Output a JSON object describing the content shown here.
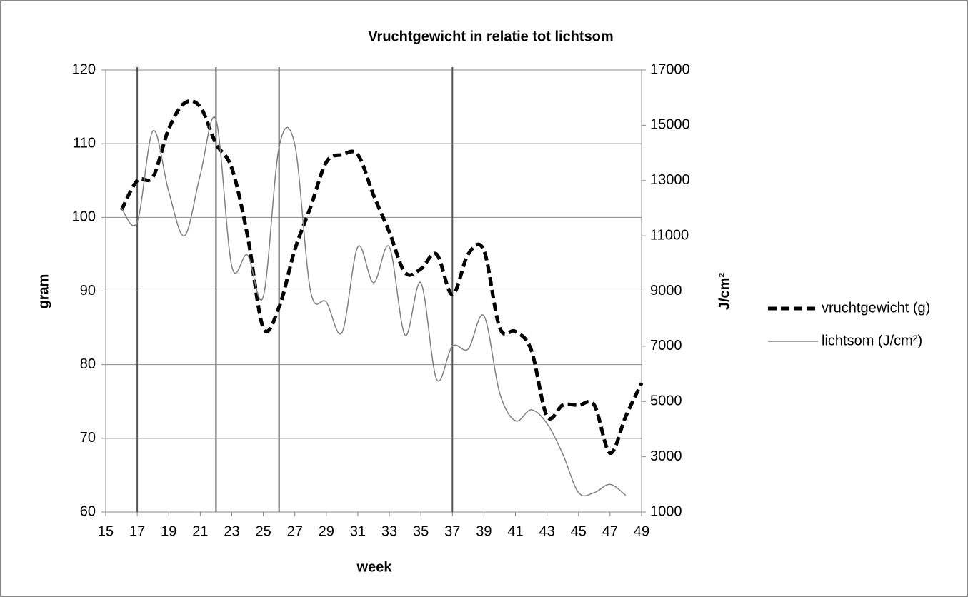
{
  "chart_data": {
    "type": "line",
    "title": "Vruchtgewicht in relatie tot lichtsom",
    "xlabel": "week",
    "ylabel": "gram",
    "y2label": "J/cm²",
    "xlim": [
      15,
      49
    ],
    "xticks": [
      15,
      17,
      19,
      21,
      23,
      25,
      27,
      29,
      31,
      33,
      35,
      37,
      39,
      41,
      43,
      45,
      47,
      49
    ],
    "ylim": [
      60,
      120
    ],
    "yticks": [
      60,
      70,
      80,
      90,
      100,
      110,
      120
    ],
    "y2lim": [
      1000,
      17000
    ],
    "y2ticks": [
      1000,
      3000,
      5000,
      7000,
      9000,
      11000,
      13000,
      15000,
      17000
    ],
    "grid": true,
    "legend": "right",
    "vlines": [
      17,
      22,
      26,
      37
    ],
    "series": [
      {
        "name": "vruchtgewicht (g)",
        "color": "#000000",
        "style": "dashed",
        "x": [
          16,
          17,
          18,
          19,
          20,
          21,
          22,
          23,
          24,
          25,
          26,
          27,
          28,
          29,
          30,
          31,
          32,
          33,
          34,
          35,
          36,
          37,
          38,
          39,
          40,
          41,
          42,
          43,
          44,
          45,
          46,
          47,
          48,
          49
        ],
        "values": [
          101,
          105,
          105.5,
          112,
          115.5,
          115,
          110,
          106.7,
          97.5,
          85,
          87.8,
          95.6,
          101.4,
          107.5,
          108.5,
          108.5,
          103,
          98,
          92.5,
          93,
          95,
          89.5,
          95,
          95.5,
          85,
          84.5,
          82,
          73,
          74.5,
          74.5,
          74.5,
          68,
          73,
          77.5
        ]
      },
      {
        "name": "lichtsom (J/cm²)",
        "color": "#808080",
        "style": "solid",
        "axis": "y2",
        "x": [
          16,
          17,
          18,
          19,
          20,
          21,
          22,
          23,
          24,
          25,
          26,
          27,
          28,
          29,
          30,
          31,
          32,
          33,
          34,
          35,
          36,
          37,
          38,
          39,
          40,
          41,
          42,
          43,
          44,
          45,
          46,
          47,
          48
        ],
        "values": [
          12000,
          11500,
          14800,
          12600,
          11000,
          13200,
          15200,
          9900,
          10300,
          8800,
          14200,
          14300,
          9000,
          8600,
          7500,
          10600,
          9300,
          10600,
          7400,
          9300,
          5800,
          7000,
          6900,
          8100,
          5300,
          4300,
          4700,
          4200,
          3100,
          1700,
          1700,
          2000,
          1600
        ]
      }
    ]
  }
}
